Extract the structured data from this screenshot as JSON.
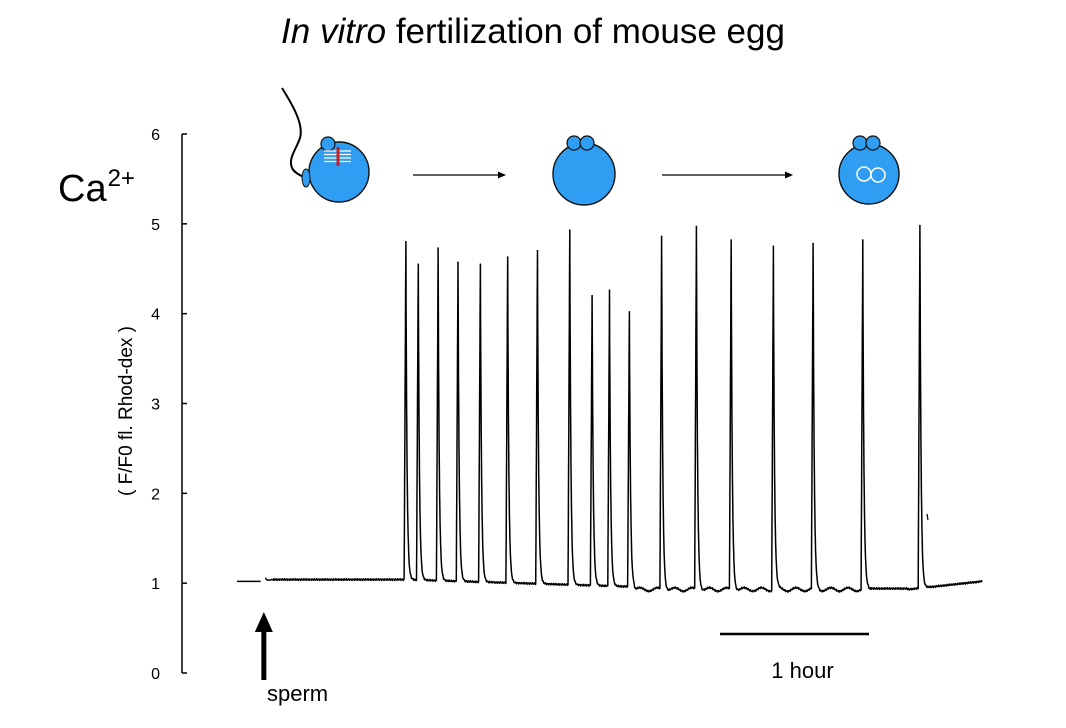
{
  "header": {
    "title_italic": "In vitro",
    "title_rest": "fertilization of mouse egg"
  },
  "ca_label": {
    "base": "Ca",
    "superscript": "2+"
  },
  "colors": {
    "egg_fill": "#2f9ef2",
    "egg_stroke": "#111111",
    "trace": "#000000",
    "sperm_stripe": "#cc1f1f",
    "sperm_band": "#ffffff"
  },
  "stages": [
    {
      "name": "egg-with-sperm"
    },
    {
      "name": "egg-with-polar-bodies"
    },
    {
      "name": "zygote-with-pronuclei"
    }
  ],
  "chart_data": {
    "type": "line",
    "title": "In vitro fertilization of mouse egg",
    "ylabel": "( F/F0 fl. Rhod-dex )",
    "xlabel": "",
    "ylim": [
      0,
      6
    ],
    "xlim": [
      0,
      300
    ],
    "y_ticks": [
      "0",
      "1",
      "2",
      "3",
      "4",
      "5",
      "6"
    ],
    "baseline": {
      "start": 1.02,
      "plateau": 1.04,
      "trough": 0.93,
      "end": 1.02
    },
    "sperm_added_at": 10,
    "gap_between": [
      9.5,
      11.5
    ],
    "spike_peaks": [
      {
        "t": 68,
        "v": 4.8
      },
      {
        "t": 73,
        "v": 4.55
      },
      {
        "t": 81,
        "v": 4.73
      },
      {
        "t": 89,
        "v": 4.57
      },
      {
        "t": 98,
        "v": 4.55
      },
      {
        "t": 109,
        "v": 4.63
      },
      {
        "t": 121,
        "v": 4.7
      },
      {
        "t": 134,
        "v": 4.93
      },
      {
        "t": 143,
        "v": 4.2
      },
      {
        "t": 150,
        "v": 4.26
      },
      {
        "t": 158,
        "v": 4.02
      },
      {
        "t": 171,
        "v": 4.86
      },
      {
        "t": 185,
        "v": 4.97
      },
      {
        "t": 199,
        "v": 4.82
      },
      {
        "t": 216,
        "v": 4.75
      },
      {
        "t": 232,
        "v": 4.78
      },
      {
        "t": 252,
        "v": 4.82
      },
      {
        "t": 275,
        "v": 4.98
      }
    ],
    "scale_bar": {
      "label": "1 hour",
      "minutes": 60
    },
    "annotation": {
      "label": "sperm"
    }
  }
}
